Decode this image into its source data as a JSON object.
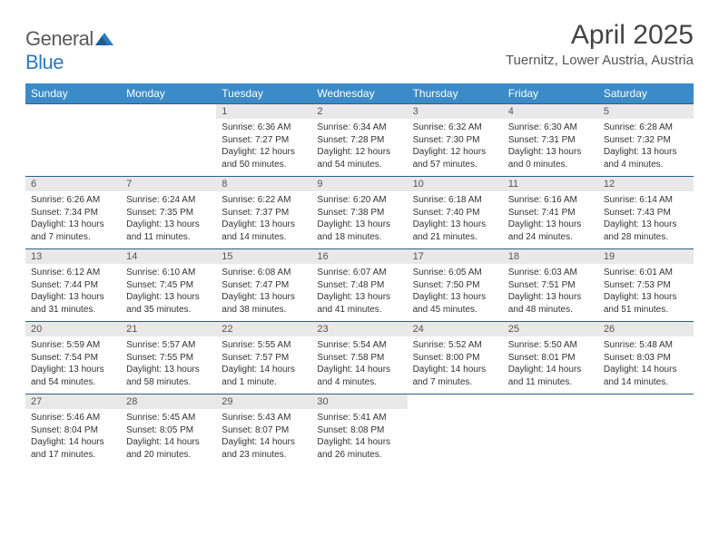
{
  "brand": {
    "part1": "General",
    "part2": "Blue"
  },
  "title": "April 2025",
  "location": "Tuernitz, Lower Austria, Austria",
  "colors": {
    "header_bg": "#3b8bc8",
    "header_text": "#ffffff",
    "daynum_bg": "#e9e9e9",
    "row_border": "#2f5d87",
    "body_text": "#333333",
    "brand_gray": "#5a5a5a",
    "brand_blue": "#2b7bbf"
  },
  "daynames": [
    "Sunday",
    "Monday",
    "Tuesday",
    "Wednesday",
    "Thursday",
    "Friday",
    "Saturday"
  ],
  "weeks": [
    [
      {
        "num": "",
        "sunrise": "",
        "sunset": "",
        "daylight": ""
      },
      {
        "num": "",
        "sunrise": "",
        "sunset": "",
        "daylight": ""
      },
      {
        "num": "1",
        "sunrise": "Sunrise: 6:36 AM",
        "sunset": "Sunset: 7:27 PM",
        "daylight": "Daylight: 12 hours and 50 minutes."
      },
      {
        "num": "2",
        "sunrise": "Sunrise: 6:34 AM",
        "sunset": "Sunset: 7:28 PM",
        "daylight": "Daylight: 12 hours and 54 minutes."
      },
      {
        "num": "3",
        "sunrise": "Sunrise: 6:32 AM",
        "sunset": "Sunset: 7:30 PM",
        "daylight": "Daylight: 12 hours and 57 minutes."
      },
      {
        "num": "4",
        "sunrise": "Sunrise: 6:30 AM",
        "sunset": "Sunset: 7:31 PM",
        "daylight": "Daylight: 13 hours and 0 minutes."
      },
      {
        "num": "5",
        "sunrise": "Sunrise: 6:28 AM",
        "sunset": "Sunset: 7:32 PM",
        "daylight": "Daylight: 13 hours and 4 minutes."
      }
    ],
    [
      {
        "num": "6",
        "sunrise": "Sunrise: 6:26 AM",
        "sunset": "Sunset: 7:34 PM",
        "daylight": "Daylight: 13 hours and 7 minutes."
      },
      {
        "num": "7",
        "sunrise": "Sunrise: 6:24 AM",
        "sunset": "Sunset: 7:35 PM",
        "daylight": "Daylight: 13 hours and 11 minutes."
      },
      {
        "num": "8",
        "sunrise": "Sunrise: 6:22 AM",
        "sunset": "Sunset: 7:37 PM",
        "daylight": "Daylight: 13 hours and 14 minutes."
      },
      {
        "num": "9",
        "sunrise": "Sunrise: 6:20 AM",
        "sunset": "Sunset: 7:38 PM",
        "daylight": "Daylight: 13 hours and 18 minutes."
      },
      {
        "num": "10",
        "sunrise": "Sunrise: 6:18 AM",
        "sunset": "Sunset: 7:40 PM",
        "daylight": "Daylight: 13 hours and 21 minutes."
      },
      {
        "num": "11",
        "sunrise": "Sunrise: 6:16 AM",
        "sunset": "Sunset: 7:41 PM",
        "daylight": "Daylight: 13 hours and 24 minutes."
      },
      {
        "num": "12",
        "sunrise": "Sunrise: 6:14 AM",
        "sunset": "Sunset: 7:43 PM",
        "daylight": "Daylight: 13 hours and 28 minutes."
      }
    ],
    [
      {
        "num": "13",
        "sunrise": "Sunrise: 6:12 AM",
        "sunset": "Sunset: 7:44 PM",
        "daylight": "Daylight: 13 hours and 31 minutes."
      },
      {
        "num": "14",
        "sunrise": "Sunrise: 6:10 AM",
        "sunset": "Sunset: 7:45 PM",
        "daylight": "Daylight: 13 hours and 35 minutes."
      },
      {
        "num": "15",
        "sunrise": "Sunrise: 6:08 AM",
        "sunset": "Sunset: 7:47 PM",
        "daylight": "Daylight: 13 hours and 38 minutes."
      },
      {
        "num": "16",
        "sunrise": "Sunrise: 6:07 AM",
        "sunset": "Sunset: 7:48 PM",
        "daylight": "Daylight: 13 hours and 41 minutes."
      },
      {
        "num": "17",
        "sunrise": "Sunrise: 6:05 AM",
        "sunset": "Sunset: 7:50 PM",
        "daylight": "Daylight: 13 hours and 45 minutes."
      },
      {
        "num": "18",
        "sunrise": "Sunrise: 6:03 AM",
        "sunset": "Sunset: 7:51 PM",
        "daylight": "Daylight: 13 hours and 48 minutes."
      },
      {
        "num": "19",
        "sunrise": "Sunrise: 6:01 AM",
        "sunset": "Sunset: 7:53 PM",
        "daylight": "Daylight: 13 hours and 51 minutes."
      }
    ],
    [
      {
        "num": "20",
        "sunrise": "Sunrise: 5:59 AM",
        "sunset": "Sunset: 7:54 PM",
        "daylight": "Daylight: 13 hours and 54 minutes."
      },
      {
        "num": "21",
        "sunrise": "Sunrise: 5:57 AM",
        "sunset": "Sunset: 7:55 PM",
        "daylight": "Daylight: 13 hours and 58 minutes."
      },
      {
        "num": "22",
        "sunrise": "Sunrise: 5:55 AM",
        "sunset": "Sunset: 7:57 PM",
        "daylight": "Daylight: 14 hours and 1 minute."
      },
      {
        "num": "23",
        "sunrise": "Sunrise: 5:54 AM",
        "sunset": "Sunset: 7:58 PM",
        "daylight": "Daylight: 14 hours and 4 minutes."
      },
      {
        "num": "24",
        "sunrise": "Sunrise: 5:52 AM",
        "sunset": "Sunset: 8:00 PM",
        "daylight": "Daylight: 14 hours and 7 minutes."
      },
      {
        "num": "25",
        "sunrise": "Sunrise: 5:50 AM",
        "sunset": "Sunset: 8:01 PM",
        "daylight": "Daylight: 14 hours and 11 minutes."
      },
      {
        "num": "26",
        "sunrise": "Sunrise: 5:48 AM",
        "sunset": "Sunset: 8:03 PM",
        "daylight": "Daylight: 14 hours and 14 minutes."
      }
    ],
    [
      {
        "num": "27",
        "sunrise": "Sunrise: 5:46 AM",
        "sunset": "Sunset: 8:04 PM",
        "daylight": "Daylight: 14 hours and 17 minutes."
      },
      {
        "num": "28",
        "sunrise": "Sunrise: 5:45 AM",
        "sunset": "Sunset: 8:05 PM",
        "daylight": "Daylight: 14 hours and 20 minutes."
      },
      {
        "num": "29",
        "sunrise": "Sunrise: 5:43 AM",
        "sunset": "Sunset: 8:07 PM",
        "daylight": "Daylight: 14 hours and 23 minutes."
      },
      {
        "num": "30",
        "sunrise": "Sunrise: 5:41 AM",
        "sunset": "Sunset: 8:08 PM",
        "daylight": "Daylight: 14 hours and 26 minutes."
      },
      {
        "num": "",
        "sunrise": "",
        "sunset": "",
        "daylight": ""
      },
      {
        "num": "",
        "sunrise": "",
        "sunset": "",
        "daylight": ""
      },
      {
        "num": "",
        "sunrise": "",
        "sunset": "",
        "daylight": ""
      }
    ]
  ]
}
